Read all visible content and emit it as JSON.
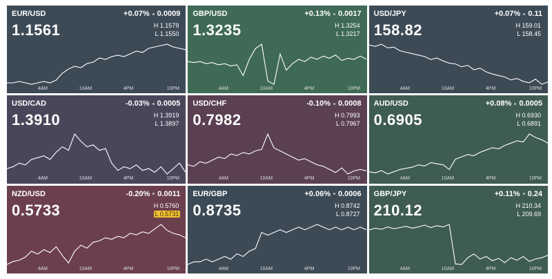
{
  "tiles": [
    {
      "pair": "EUR/USD",
      "change": "+0.07%",
      "diff": "0.0009",
      "price": "1.1561",
      "high": "H 1.1579",
      "low": "L 1.1550",
      "color": "#3c4a56",
      "times": [
        "4AM",
        "10AM",
        "4PM",
        "10PM"
      ],
      "line": [
        1.1551,
        1.1551,
        1.1552,
        1.1551,
        1.155,
        1.1551,
        1.1552,
        1.1551,
        1.1553,
        1.1558,
        1.1561,
        1.1563,
        1.1562,
        1.1565,
        1.1566,
        1.1569,
        1.1568,
        1.157,
        1.1571,
        1.157,
        1.1572,
        1.1574,
        1.1573,
        1.1576,
        1.1577,
        1.1578,
        1.1579,
        1.1577,
        1.1576,
        1.1575
      ]
    },
    {
      "pair": "GBP/USD",
      "change": "+0.13%",
      "diff": "0.0017",
      "price": "1.3235",
      "high": "H 1.3254",
      "low": "L 1.3217",
      "color": "#3f6a56",
      "times": [
        "4AM",
        "10AM",
        "4PM",
        "10PM"
      ],
      "line": [
        1.3238,
        1.3237,
        1.3238,
        1.3236,
        1.3237,
        1.3235,
        1.3236,
        1.3234,
        1.3235,
        1.3225,
        1.324,
        1.325,
        1.3254,
        1.322,
        1.3217,
        1.3245,
        1.323,
        1.3236,
        1.324,
        1.3238,
        1.3242,
        1.324,
        1.3243,
        1.3241,
        1.3244,
        1.3239,
        1.3241,
        1.324,
        1.3243,
        1.324
      ]
    },
    {
      "pair": "USD/JPY",
      "change": "+0.07%",
      "diff": "0.11",
      "price": "158.82",
      "high": "H 159.01",
      "low": "L 158.45",
      "color": "#3c4a56",
      "times": [
        "4AM",
        "10AM",
        "4PM",
        "10PM"
      ],
      "line": [
        159.0,
        158.98,
        159.01,
        158.96,
        158.97,
        158.92,
        158.9,
        158.88,
        158.86,
        158.84,
        158.8,
        158.82,
        158.78,
        158.75,
        158.74,
        158.7,
        158.72,
        158.66,
        158.68,
        158.63,
        158.6,
        158.58,
        158.56,
        158.52,
        158.54,
        158.5,
        158.48,
        158.53,
        158.46,
        158.49
      ]
    },
    {
      "pair": "USD/CAD",
      "change": "-0.03%",
      "diff": "0.0005",
      "price": "1.3910",
      "high": "H 1.3919",
      "low": "L 1.3897",
      "color": "#4a465a",
      "times": [
        "4AM",
        "10AM",
        "4PM",
        "10PM"
      ],
      "line": [
        1.39,
        1.3901,
        1.3903,
        1.3902,
        1.3905,
        1.3906,
        1.3907,
        1.3905,
        1.3909,
        1.3912,
        1.391,
        1.3919,
        1.3915,
        1.3912,
        1.3913,
        1.391,
        1.3911,
        1.3903,
        1.3899,
        1.3901,
        1.39,
        1.3902,
        1.3899,
        1.39,
        1.3898,
        1.3901,
        1.3897,
        1.39,
        1.3903,
        1.3898
      ]
    },
    {
      "pair": "USD/CHF",
      "change": "-0.10%",
      "diff": "0.0008",
      "price": "0.7982",
      "high": "H 0.7993",
      "low": "L 0.7967",
      "color": "#5a4052",
      "times": [
        "4AM",
        "10AM",
        "4PM",
        "10PM"
      ],
      "line": [
        0.7973,
        0.7972,
        0.7975,
        0.7974,
        0.7976,
        0.7978,
        0.7977,
        0.798,
        0.7979,
        0.7981,
        0.798,
        0.7982,
        0.7983,
        0.7993,
        0.7984,
        0.7982,
        0.798,
        0.7978,
        0.7976,
        0.7977,
        0.7975,
        0.7973,
        0.7972,
        0.797,
        0.7968,
        0.7971,
        0.7967,
        0.7969,
        0.797,
        0.7969
      ]
    },
    {
      "pair": "AUD/USD",
      "change": "+0.08%",
      "diff": "0.0005",
      "price": "0.6905",
      "high": "H 0.6930",
      "low": "L 0.6891",
      "color": "#3f5c50",
      "times": [
        "4AM",
        "10AM",
        "4PM",
        "10PM"
      ],
      "line": [
        0.6897,
        0.6896,
        0.6898,
        0.6895,
        0.6897,
        0.6899,
        0.69,
        0.6901,
        0.6903,
        0.6902,
        0.6905,
        0.6904,
        0.6903,
        0.6899,
        0.6908,
        0.691,
        0.6912,
        0.6911,
        0.6914,
        0.6916,
        0.6918,
        0.6917,
        0.692,
        0.6922,
        0.6924,
        0.6923,
        0.693,
        0.6927,
        0.6925,
        0.6922
      ]
    },
    {
      "pair": "NZD/USD",
      "change": "-0.20%",
      "diff": "0.0011",
      "price": "0.5733",
      "high": "H 0.5760",
      "low": "L 0.5731",
      "color": "#6b404c",
      "highlight": "low",
      "times": [
        "4AM",
        "10AM",
        "4PM",
        "10PM"
      ],
      "line": [
        0.5733,
        0.5735,
        0.5736,
        0.5738,
        0.5742,
        0.574,
        0.5743,
        0.5741,
        0.5745,
        0.5739,
        0.5734,
        0.5742,
        0.5746,
        0.5744,
        0.5748,
        0.5749,
        0.5751,
        0.575,
        0.5752,
        0.5751,
        0.5754,
        0.5753,
        0.5755,
        0.5754,
        0.5757,
        0.576,
        0.5756,
        0.5754,
        0.5753,
        0.5751
      ]
    },
    {
      "pair": "EUR/GBP",
      "change": "+0.06%",
      "diff": "0.0006",
      "price": "0.8735",
      "high": "H 0.8742",
      "low": "L 0.8727",
      "color": "#3c4a56",
      "times": [
        "4AM",
        "10AM",
        "4PM",
        "10PM"
      ],
      "line": [
        0.8727,
        0.8728,
        0.8728,
        0.8729,
        0.8728,
        0.8729,
        0.873,
        0.8729,
        0.8731,
        0.873,
        0.8732,
        0.8733,
        0.8739,
        0.8738,
        0.8739,
        0.874,
        0.8739,
        0.874,
        0.8741,
        0.874,
        0.8741,
        0.8742,
        0.8741,
        0.874,
        0.8741,
        0.874,
        0.8741,
        0.874,
        0.8741,
        0.874
      ]
    },
    {
      "pair": "GBP/JPY",
      "change": "+0.11%",
      "diff": "0.24",
      "price": "210.12",
      "high": "H 210.34",
      "low": "L 209.69",
      "color": "#3f5c50",
      "times": [
        "4AM",
        "10AM",
        "4PM",
        "10PM"
      ],
      "line": [
        210.25,
        210.28,
        210.26,
        210.3,
        210.27,
        210.29,
        210.31,
        210.28,
        210.3,
        210.33,
        210.29,
        210.32,
        210.3,
        210.34,
        209.7,
        209.69,
        209.8,
        209.86,
        209.78,
        209.82,
        209.75,
        209.79,
        209.72,
        209.8,
        209.76,
        209.82,
        209.74,
        209.78,
        209.8,
        209.84
      ]
    }
  ]
}
